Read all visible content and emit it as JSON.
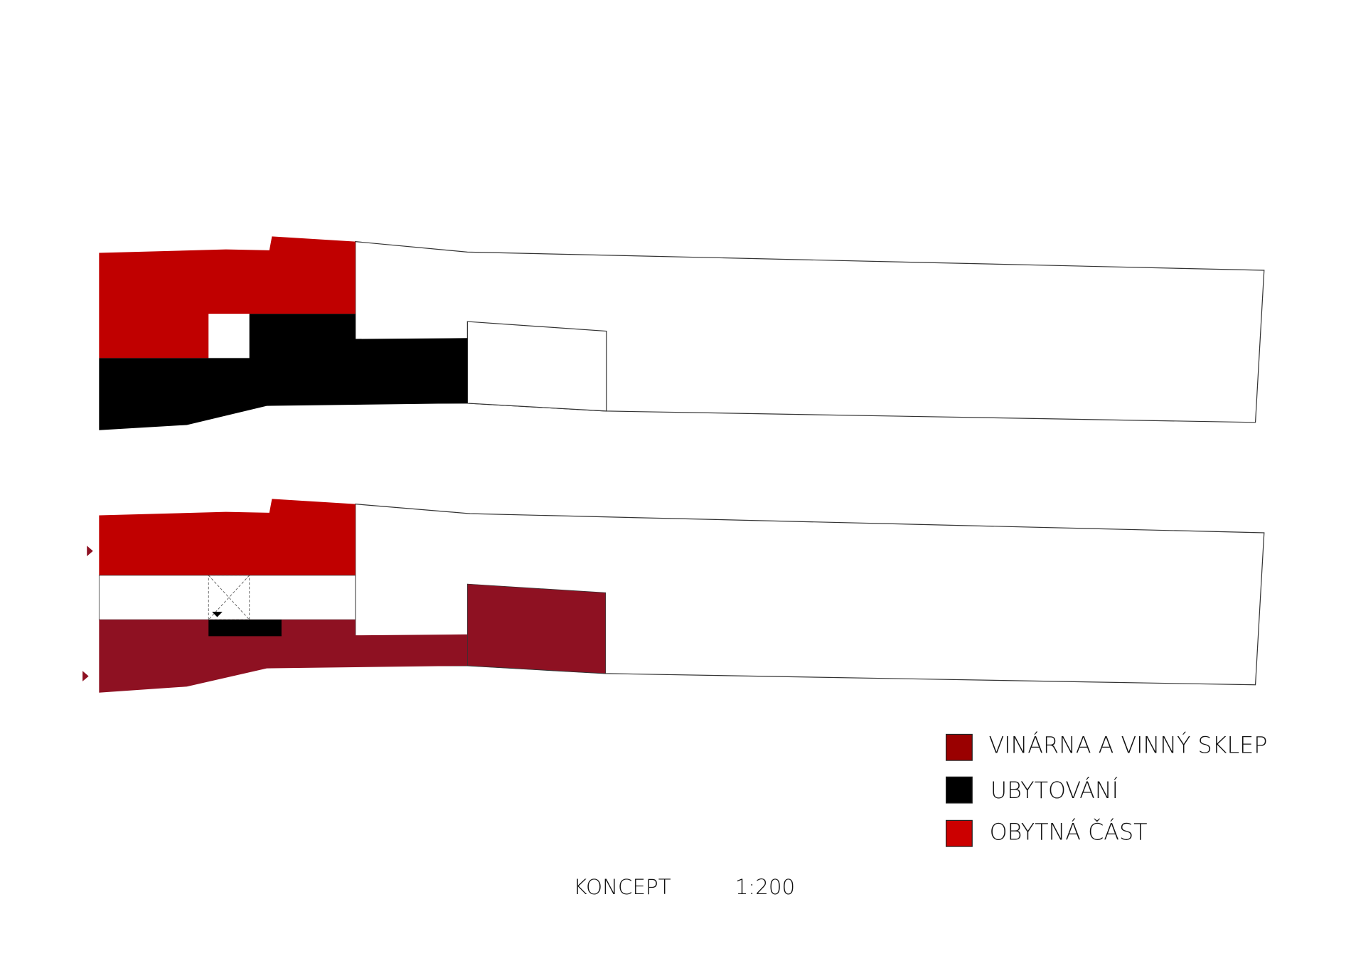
{
  "legend": {
    "items": [
      {
        "label": "VINÁRNA A VINNÝ SKLEP"
      },
      {
        "label": "UBYTOVÁNÍ"
      },
      {
        "label": "OBYTNÁ ČÁST"
      }
    ]
  },
  "footer": {
    "title": "KONCEPT",
    "scale": "1:200"
  }
}
